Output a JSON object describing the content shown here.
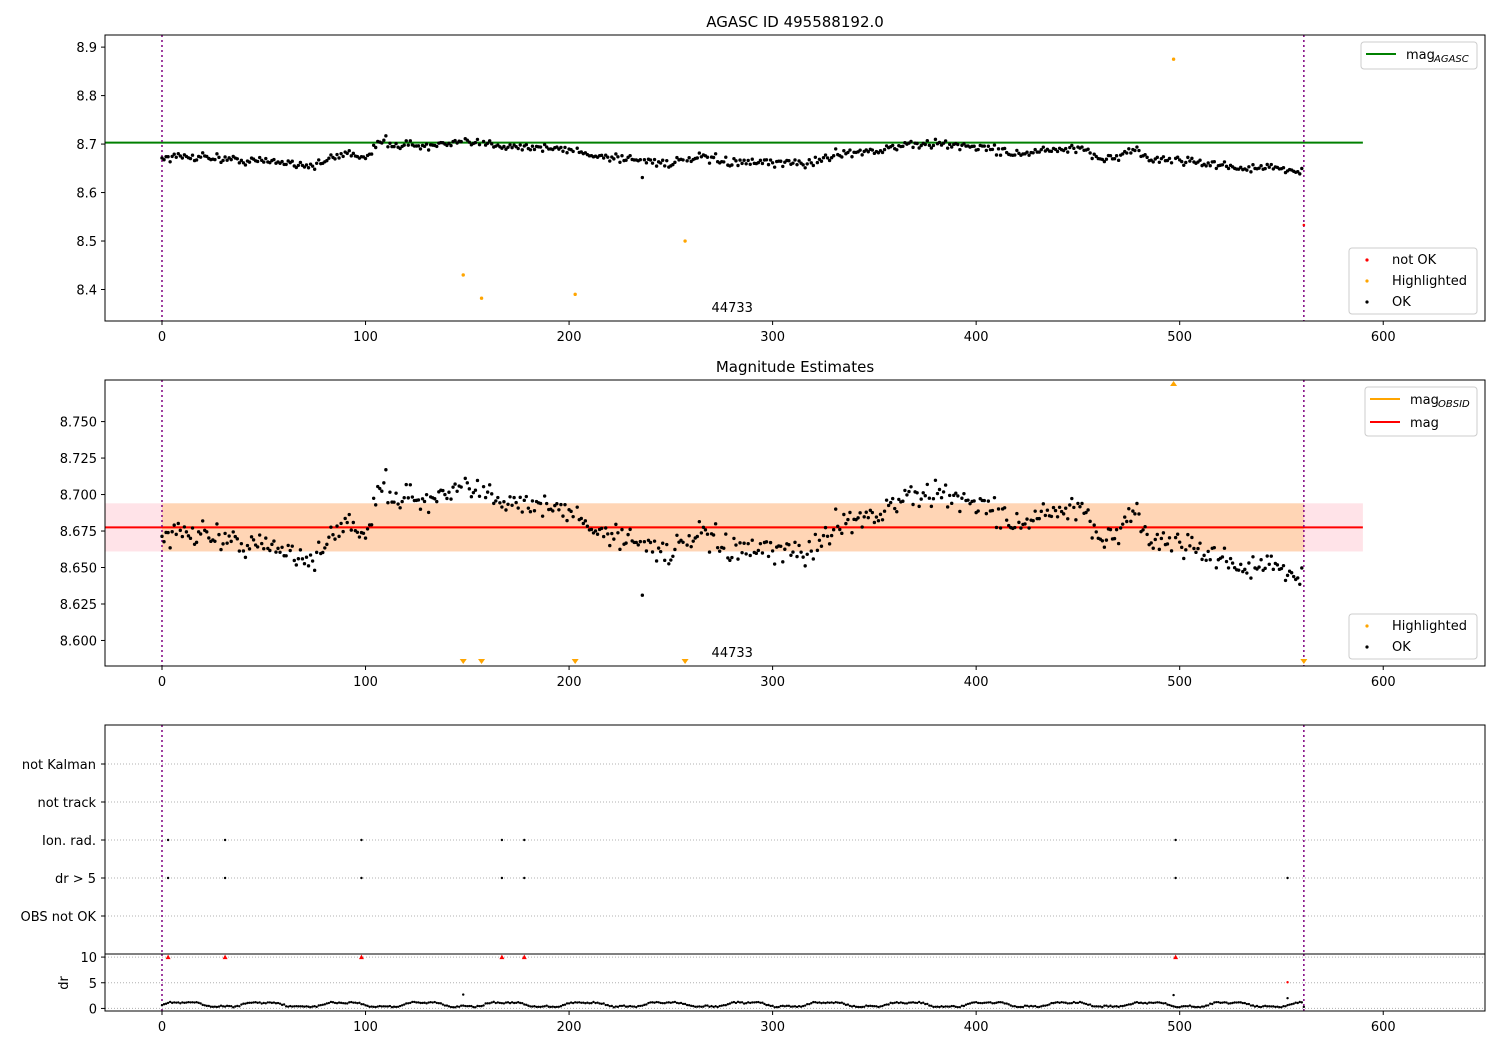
{
  "chart_data": [
    {
      "id": "agasc",
      "type": "scatter",
      "title": "AGASC ID 495588192.0",
      "xlim": [
        -28,
        650
      ],
      "ylim": [
        8.335,
        8.925
      ],
      "xticks": [
        0,
        100,
        200,
        300,
        400,
        500,
        600
      ],
      "yticks": [
        8.4,
        8.5,
        8.6,
        8.7,
        8.8,
        8.9
      ],
      "ytick_labels": [
        "8.4",
        "8.5",
        "8.6",
        "8.7",
        "8.8",
        "8.9"
      ],
      "vlines": [
        0,
        561
      ],
      "hline": {
        "name": "mag_AGASC",
        "label_main": "mag",
        "label_sub": "AGASC",
        "y": 8.703,
        "x_range": [
          -28,
          590
        ],
        "color": "#008000"
      },
      "obsid_label": "44733",
      "series_ok": {
        "name": "OK",
        "color": "#000000"
      },
      "highlighted": {
        "name": "Highlighted",
        "color": "#ffa500",
        "x": [
          148,
          157,
          203,
          257,
          497
        ],
        "y": [
          8.43,
          8.382,
          8.39,
          8.5,
          8.875
        ]
      },
      "not_ok": {
        "name": "not OK",
        "color": "#ff0000",
        "x": [
          561
        ],
        "y": [
          8.533
        ]
      },
      "legend_lines": [
        {
          "main": "mag",
          "sub": "AGASC",
          "color": "#008000"
        }
      ],
      "legend_markers": [
        {
          "label": "not OK",
          "color": "#ff0000"
        },
        {
          "label": "Highlighted",
          "color": "#ffa500"
        },
        {
          "label": "OK",
          "color": "#000000"
        }
      ]
    },
    {
      "id": "magest",
      "type": "scatter",
      "title": "Magnitude Estimates",
      "xlim": [
        -28,
        650
      ],
      "ylim": [
        8.5825,
        8.7785
      ],
      "xticks": [
        0,
        100,
        200,
        300,
        400,
        500,
        600
      ],
      "yticks": [
        8.6,
        8.625,
        8.65,
        8.675,
        8.7,
        8.725,
        8.75
      ],
      "ytick_labels": [
        "8.600",
        "8.625",
        "8.650",
        "8.675",
        "8.700",
        "8.725",
        "8.750"
      ],
      "vlines": [
        0,
        561
      ],
      "mag_line": {
        "name": "mag",
        "y": 8.6775,
        "color": "#ff0000"
      },
      "mag_obsid": {
        "name": "mag_OBSID",
        "y": 8.6775,
        "x_range": [
          0,
          561
        ],
        "band": [
          8.661,
          8.694
        ],
        "color": "#ffa500"
      },
      "mag_band": {
        "band": [
          8.661,
          8.694
        ],
        "x_range": [
          -28,
          590
        ],
        "color": "#ffc0cb"
      },
      "obsid_label": "44733",
      "clipped_low_x": [
        148,
        157,
        203,
        257,
        561
      ],
      "clipped_high_x": [
        497
      ],
      "legend_lines": [
        {
          "main": "mag",
          "sub": "OBSID",
          "color": "#ffa500"
        },
        {
          "main": "mag",
          "sub": "",
          "color": "#ff0000"
        }
      ],
      "legend_markers": [
        {
          "label": "Highlighted",
          "color": "#ffa500"
        },
        {
          "label": "OK",
          "color": "#000000"
        }
      ]
    },
    {
      "id": "flags",
      "type": "scatter",
      "categories": [
        "OBS not OK",
        "dr > 5",
        "Ion. rad.",
        "not track",
        "not Kalman"
      ],
      "xlim": [
        -28,
        650
      ],
      "vlines": [
        0,
        561
      ],
      "points": [
        {
          "category": "Ion. rad.",
          "x": [
            3,
            31,
            98,
            167,
            178,
            498
          ]
        },
        {
          "category": "dr > 5",
          "x": [
            3,
            31,
            98,
            167,
            178,
            498,
            553
          ]
        }
      ]
    },
    {
      "id": "dr",
      "type": "scatter",
      "ylabel": "dr",
      "xlim": [
        -28,
        650
      ],
      "ylim": [
        -0.5,
        10.6
      ],
      "xticks": [
        0,
        100,
        200,
        300,
        400,
        500,
        600
      ],
      "yticks": [
        0,
        5,
        10
      ],
      "ytick_labels": [
        "0",
        "5",
        "10"
      ],
      "vlines": [
        0,
        561
      ],
      "clipped_x": [
        3,
        31,
        98,
        167,
        178,
        498
      ],
      "outliers": [
        {
          "x": 148,
          "y": 2.7
        },
        {
          "x": 497,
          "y": 2.6
        },
        {
          "x": 553,
          "y": 2.0
        },
        {
          "x": 553,
          "y": 5.1
        },
        {
          "x": 561,
          "y": 0.3
        }
      ]
    }
  ]
}
